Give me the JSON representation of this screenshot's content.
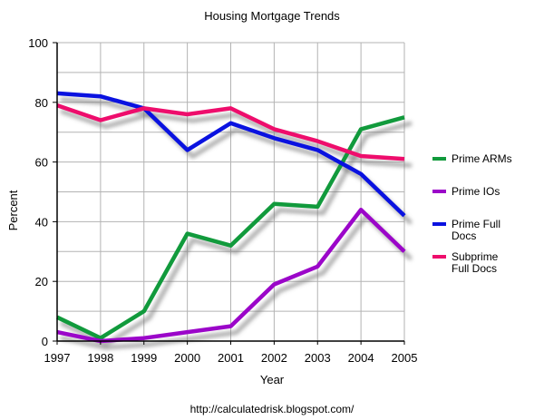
{
  "chart_data": {
    "type": "line",
    "title": "Housing Mortgage Trends",
    "xlabel": "Year",
    "ylabel": "Percent",
    "footer": "http://calculatedrisk.blogspot.com/",
    "categories": [
      "1997",
      "1998",
      "1999",
      "2000",
      "2001",
      "2002",
      "2003",
      "2004",
      "2005"
    ],
    "ylim": [
      0,
      100
    ],
    "y_ticks": [
      "0",
      "20",
      "40",
      "60",
      "80",
      "100"
    ],
    "grid": true,
    "legend_position": "right",
    "series": [
      {
        "name": "Prime ARMs",
        "label_lines": [
          "Prime ARMs"
        ],
        "color": "#119a3c",
        "values": [
          8,
          1,
          10,
          36,
          32,
          46,
          45,
          71,
          75
        ]
      },
      {
        "name": "Prime IOs",
        "label_lines": [
          "Prime IOs"
        ],
        "color": "#9b06c9",
        "values": [
          3,
          0,
          1,
          3,
          5,
          19,
          25,
          44,
          30
        ]
      },
      {
        "name": "Prime Full Docs",
        "label_lines": [
          "Prime Full",
          "Docs"
        ],
        "color": "#0a12e0",
        "values": [
          83,
          82,
          78,
          64,
          73,
          68,
          64,
          56,
          42
        ]
      },
      {
        "name": "Subprime Full Docs",
        "label_lines": [
          "Subprime",
          "Full Docs"
        ],
        "color": "#ee0d6c",
        "values": [
          79,
          74,
          78,
          76,
          78,
          71,
          67,
          62,
          61
        ]
      }
    ]
  }
}
